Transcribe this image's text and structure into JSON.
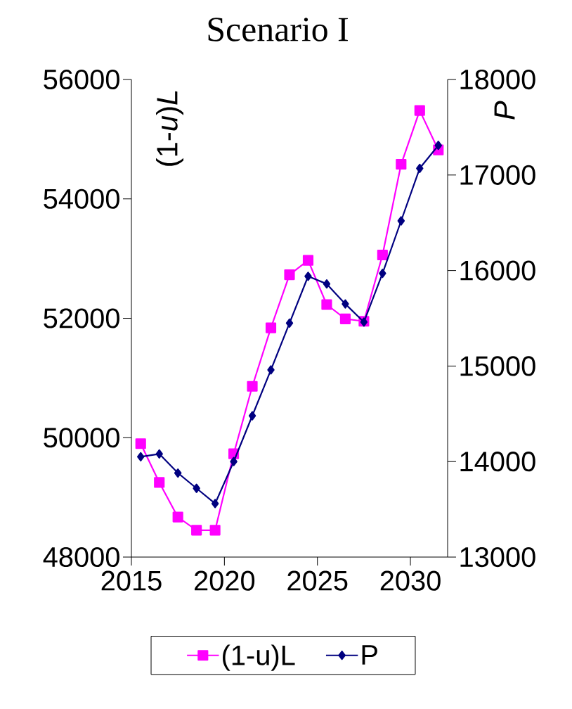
{
  "chart_data": {
    "type": "line",
    "title": "Scenario I",
    "ylabel": "(1-*u*)*L*",
    "y2label": "*P*",
    "x": [
      2015.5,
      2016.5,
      2017.5,
      2018.5,
      2019.5,
      2020.5,
      2021.5,
      2022.5,
      2023.5,
      2024.5,
      2025.5,
      2026.5,
      2027.5,
      2028.5,
      2029.5,
      2030.5,
      2031.5
    ],
    "series": [
      {
        "name": "(1-u)L",
        "color": "#ff00ff",
        "marker": "square",
        "values": [
          49900,
          49250,
          48670,
          48450,
          48450,
          49730,
          50860,
          51840,
          52730,
          52970,
          52230,
          51990,
          51950,
          53060,
          54580,
          55480,
          54820
        ]
      },
      {
        "name": "P",
        "color": "#000080",
        "marker": "diamond",
        "axis": "y2",
        "values": [
          14050,
          14080,
          13880,
          13720,
          13560,
          14000,
          14480,
          14960,
          15450,
          15940,
          15860,
          15650,
          15460,
          15970,
          16520,
          17070,
          17310
        ]
      }
    ],
    "xlim": [
      2015,
      2032
    ],
    "xticks": [
      2015,
      2020,
      2025,
      2030
    ],
    "ylim": [
      48000,
      56000
    ],
    "yticks": [
      48000,
      50000,
      52000,
      54000,
      56000
    ],
    "y2lim": [
      13000,
      18000
    ],
    "y2ticks": [
      13000,
      14000,
      15000,
      16000,
      17000,
      18000
    ],
    "grid": false,
    "legend": "bottom"
  }
}
